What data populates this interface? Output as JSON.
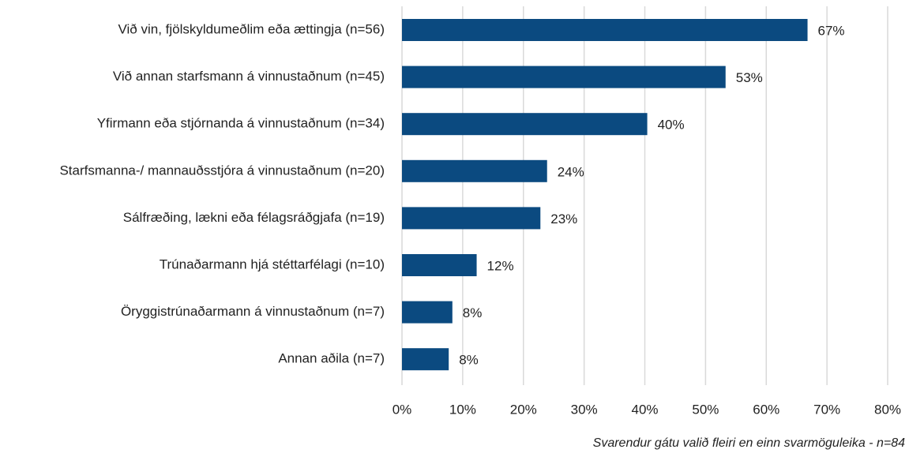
{
  "chart_data": {
    "type": "bar",
    "orientation": "horizontal",
    "categories": [
      "Við vin, fjölskyldumeðlim eða ættingja (n=56)",
      "Við annan starfsmann á vinnustaðnum (n=45)",
      "Yfirmann eða stjórnanda á vinnustaðnum (n=34)",
      "Starfsmanna-/ mannauðsstjóra á vinnustaðnum (n=20)",
      "Sálfræðing, lækni eða félagsráðgjafa (n=19)",
      "Trúnaðarmann hjá stéttarfélagi (n=10)",
      "Öryggistrúnaðarmann á vinnustaðnum (n=7)",
      "Annan aðila (n=7)"
    ],
    "values": [
      66.8,
      53.3,
      40.4,
      23.9,
      22.8,
      12.3,
      8.3,
      7.7
    ],
    "value_labels": [
      "67%",
      "53%",
      "40%",
      "24%",
      "23%",
      "12%",
      "8%",
      "8%"
    ],
    "color": "#0b4a80",
    "xlim": [
      0,
      80
    ],
    "xticks": [
      {
        "value": 0,
        "label": "0%"
      },
      {
        "value": 10,
        "label": "10%"
      },
      {
        "value": 20,
        "label": "20%"
      },
      {
        "value": 30,
        "label": "30%"
      },
      {
        "value": 40,
        "label": "40%"
      },
      {
        "value": 50,
        "label": "50%"
      },
      {
        "value": 60,
        "label": "60%"
      },
      {
        "value": 70,
        "label": "70%"
      },
      {
        "value": 80,
        "label": "80%"
      }
    ],
    "grid": true,
    "annotation": "Svarendur gátu valið fleiri en einn svarmöguleika - n=84"
  }
}
